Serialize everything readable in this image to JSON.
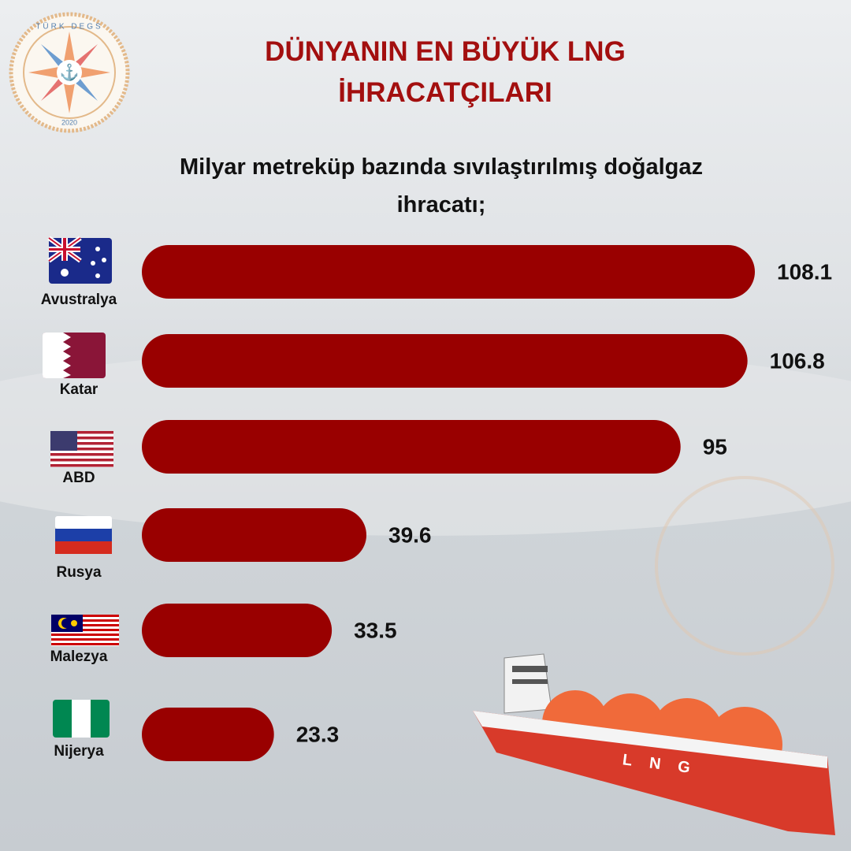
{
  "chart_data": {
    "type": "bar",
    "orientation": "horizontal",
    "title": "DÜNYANIN EN BÜYÜK LNG İHRACATÇILARI",
    "subtitle": "Milyar metreküp bazında sıvılaştırılmış doğalgaz ihracatı;",
    "categories": [
      "Avustralya",
      "Katar",
      "ABD",
      "Rusya",
      "Malezya",
      "Nijerya"
    ],
    "values": [
      108.1,
      106.8,
      95,
      39.6,
      33.5,
      23.3
    ],
    "color": "#990000"
  },
  "logo": {
    "name": "TÜRK DEGS",
    "year": "2020"
  },
  "ship_label": "LNG"
}
